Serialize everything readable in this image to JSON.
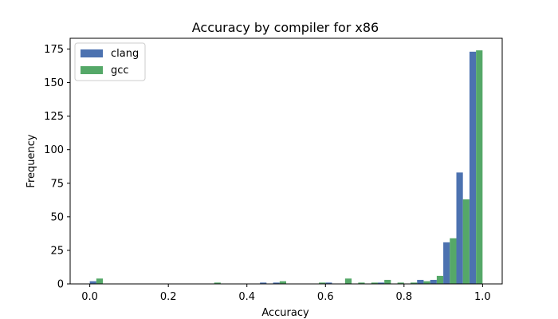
{
  "chart_data": {
    "type": "bar",
    "title": "Accuracy by compiler for x86",
    "xlabel": "Accuracy",
    "ylabel": "Frequency",
    "xlim": [
      -0.05,
      1.05
    ],
    "ylim": [
      0,
      183
    ],
    "xticks": [
      0.0,
      0.2,
      0.4,
      0.6,
      0.8,
      1.0
    ],
    "xtick_labels": [
      "0.0",
      "0.2",
      "0.4",
      "0.6",
      "0.8",
      "1.0"
    ],
    "yticks": [
      0,
      25,
      50,
      75,
      100,
      125,
      150,
      175
    ],
    "ytick_labels": [
      "0",
      "25",
      "50",
      "75",
      "100",
      "125",
      "150",
      "175"
    ],
    "bin_width": 0.0333,
    "bins": [
      0.0,
      0.0333,
      0.0667,
      0.1,
      0.1333,
      0.1667,
      0.2,
      0.2333,
      0.2667,
      0.3,
      0.3333,
      0.3667,
      0.4,
      0.4333,
      0.4667,
      0.5,
      0.5333,
      0.5667,
      0.6,
      0.6333,
      0.6667,
      0.7,
      0.7333,
      0.7667,
      0.8,
      0.8333,
      0.8667,
      0.9,
      0.9333,
      0.9667
    ],
    "series": [
      {
        "name": "clang",
        "color": "#4c72b0",
        "values": [
          2,
          0,
          0,
          0,
          0,
          0,
          0,
          0,
          0,
          0,
          0,
          0,
          0,
          1,
          1,
          0,
          0,
          0,
          1,
          0,
          0,
          0,
          1,
          0,
          0,
          3,
          3,
          31,
          83,
          173
        ]
      },
      {
        "name": "gcc",
        "color": "#55a868",
        "values": [
          4,
          0,
          0,
          0,
          0,
          0,
          0,
          0,
          0,
          1,
          0,
          0,
          0,
          0,
          2,
          0,
          0,
          1,
          0,
          4,
          1,
          1,
          3,
          1,
          1,
          2,
          6,
          34,
          63,
          174
        ]
      }
    ],
    "legend_position": "top-left",
    "grid": false
  }
}
